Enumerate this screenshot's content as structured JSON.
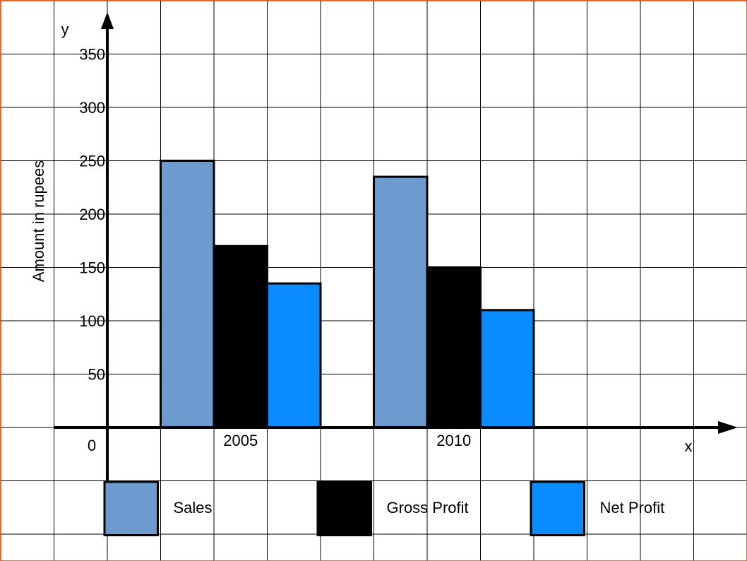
{
  "chart_data": {
    "type": "bar",
    "ylabel": "Amount in rupees",
    "y_axis_letter": "y",
    "x_axis_letter": "x",
    "origin_label": "0",
    "categories": [
      "2005",
      "2010"
    ],
    "series": [
      {
        "name": "Sales",
        "values": [
          250,
          235
        ],
        "color": "#6d9bd0"
      },
      {
        "name": "Gross Profit",
        "values": [
          170,
          150
        ],
        "color": "#000000"
      },
      {
        "name": "Net Profit",
        "values": [
          135,
          110
        ],
        "color": "#0a8bff"
      }
    ],
    "y_ticks": [
      "50",
      "100",
      "150",
      "200",
      "250",
      "300",
      "350"
    ],
    "ylim": [
      0,
      350
    ],
    "grid": true,
    "legend_position": "bottom"
  }
}
